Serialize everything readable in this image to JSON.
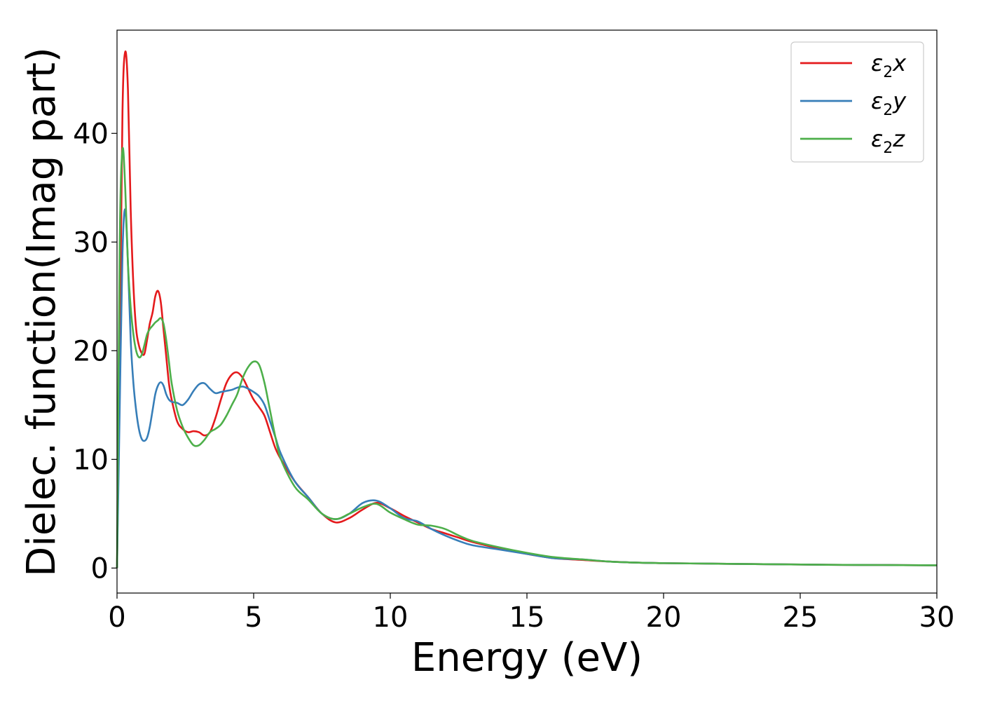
{
  "chart_data": {
    "type": "line",
    "title": "",
    "xlabel": "Energy (eV)",
    "ylabel": "Dielec. function(Imag part)",
    "xlim": [
      0,
      30
    ],
    "ylim": [
      -2.3,
      49.5
    ],
    "xticks": [
      0,
      5,
      10,
      15,
      20,
      25,
      30
    ],
    "yticks": [
      0,
      10,
      20,
      30,
      40
    ],
    "grid": false,
    "legend_position": "top-right",
    "series": [
      {
        "name": "ε2x",
        "legend_base": "ε",
        "legend_sub": "2",
        "legend_var": "x",
        "color": "#e41a1c",
        "x": [
          0,
          0.1,
          0.2,
          0.3,
          0.4,
          0.5,
          0.6,
          0.7,
          0.8,
          0.9,
          1.0,
          1.1,
          1.2,
          1.3,
          1.4,
          1.5,
          1.6,
          1.7,
          1.8,
          1.9,
          2.0,
          2.2,
          2.4,
          2.6,
          2.8,
          3.0,
          3.2,
          3.4,
          3.6,
          3.8,
          4.0,
          4.2,
          4.4,
          4.6,
          4.8,
          5.0,
          5.2,
          5.4,
          5.6,
          5.8,
          6.0,
          6.5,
          7.0,
          7.5,
          8.0,
          8.5,
          9.0,
          9.5,
          10.0,
          10.5,
          11.0,
          11.5,
          12.0,
          12.5,
          13.0,
          14.0,
          15.0,
          16.0,
          17.0,
          18.0,
          19.0,
          20.0,
          22.0,
          24.0,
          26.0,
          28.0,
          30.0
        ],
        "y": [
          0,
          20.0,
          42.0,
          47.5,
          44.0,
          33.0,
          26.0,
          22.0,
          20.5,
          19.8,
          19.7,
          21.0,
          22.5,
          23.5,
          25.0,
          25.5,
          24.5,
          22.0,
          19.5,
          17.0,
          15.5,
          13.5,
          12.8,
          12.5,
          12.6,
          12.5,
          12.2,
          12.5,
          13.8,
          15.5,
          17.0,
          17.8,
          18.0,
          17.5,
          16.5,
          15.5,
          14.8,
          14.0,
          12.5,
          11.0,
          10.0,
          8.0,
          6.5,
          5.0,
          4.2,
          4.6,
          5.4,
          6.0,
          5.5,
          4.8,
          4.2,
          3.6,
          3.2,
          2.8,
          2.4,
          1.8,
          1.3,
          0.9,
          0.75,
          0.6,
          0.5,
          0.45,
          0.4,
          0.35,
          0.3,
          0.28,
          0.25
        ]
      },
      {
        "name": "ε2y",
        "legend_base": "ε",
        "legend_sub": "2",
        "legend_var": "y",
        "color": "#377eb8",
        "x": [
          0,
          0.1,
          0.2,
          0.3,
          0.4,
          0.5,
          0.6,
          0.7,
          0.8,
          0.9,
          1.0,
          1.1,
          1.2,
          1.3,
          1.4,
          1.5,
          1.6,
          1.7,
          1.8,
          1.9,
          2.0,
          2.2,
          2.4,
          2.6,
          2.8,
          3.0,
          3.2,
          3.4,
          3.6,
          3.8,
          4.0,
          4.2,
          4.4,
          4.6,
          4.8,
          5.0,
          5.2,
          5.4,
          5.6,
          5.8,
          6.0,
          6.5,
          7.0,
          7.5,
          8.0,
          8.5,
          9.0,
          9.5,
          10.0,
          10.5,
          11.0,
          11.5,
          12.0,
          12.5,
          13.0,
          14.0,
          15.0,
          16.0,
          17.0,
          18.0,
          19.0,
          20.0,
          22.0,
          24.0,
          26.0,
          28.0,
          30.0
        ],
        "y": [
          0,
          15.0,
          29.0,
          33.0,
          28.0,
          21.0,
          17.0,
          14.5,
          12.8,
          11.9,
          11.7,
          12.0,
          13.0,
          14.5,
          16.0,
          16.8,
          17.1,
          16.8,
          16.0,
          15.5,
          15.3,
          15.2,
          15.0,
          15.5,
          16.3,
          16.9,
          17.0,
          16.5,
          16.1,
          16.2,
          16.3,
          16.4,
          16.6,
          16.7,
          16.5,
          16.2,
          15.8,
          15.0,
          13.5,
          12.0,
          10.5,
          8.0,
          6.5,
          5.0,
          4.5,
          5.0,
          6.0,
          6.2,
          5.5,
          4.6,
          4.3,
          3.6,
          3.0,
          2.5,
          2.1,
          1.7,
          1.3,
          0.9,
          0.8,
          0.6,
          0.5,
          0.45,
          0.4,
          0.35,
          0.3,
          0.28,
          0.25
        ]
      },
      {
        "name": "ε2z",
        "legend_base": "ε",
        "legend_sub": "2",
        "legend_var": "z",
        "color": "#4daf4a",
        "x": [
          0,
          0.1,
          0.2,
          0.3,
          0.4,
          0.5,
          0.6,
          0.7,
          0.8,
          0.9,
          1.0,
          1.1,
          1.2,
          1.3,
          1.4,
          1.5,
          1.6,
          1.7,
          1.8,
          1.9,
          2.0,
          2.2,
          2.4,
          2.6,
          2.8,
          3.0,
          3.2,
          3.4,
          3.6,
          3.8,
          4.0,
          4.2,
          4.4,
          4.6,
          4.8,
          5.0,
          5.2,
          5.4,
          5.6,
          5.8,
          6.0,
          6.5,
          7.0,
          7.5,
          8.0,
          8.5,
          9.0,
          9.5,
          10.0,
          10.5,
          11.0,
          11.5,
          12.0,
          12.5,
          13.0,
          14.0,
          15.0,
          16.0,
          17.0,
          18.0,
          19.0,
          20.0,
          22.0,
          24.0,
          26.0,
          28.0,
          30.0
        ],
        "y": [
          0,
          30.0,
          38.5,
          35.0,
          28.0,
          24.0,
          21.5,
          20.0,
          19.4,
          19.6,
          20.5,
          21.5,
          22.0,
          22.3,
          22.6,
          22.8,
          23.0,
          22.5,
          21.0,
          19.0,
          17.0,
          14.5,
          13.0,
          12.0,
          11.3,
          11.3,
          11.8,
          12.5,
          12.8,
          13.2,
          14.0,
          15.0,
          16.0,
          17.5,
          18.5,
          19.0,
          18.7,
          17.0,
          14.5,
          12.0,
          10.0,
          7.5,
          6.3,
          5.0,
          4.5,
          5.0,
          5.6,
          5.9,
          5.1,
          4.5,
          4.0,
          3.9,
          3.6,
          3.0,
          2.5,
          1.9,
          1.4,
          1.0,
          0.8,
          0.6,
          0.5,
          0.45,
          0.4,
          0.35,
          0.3,
          0.28,
          0.25
        ]
      }
    ]
  }
}
